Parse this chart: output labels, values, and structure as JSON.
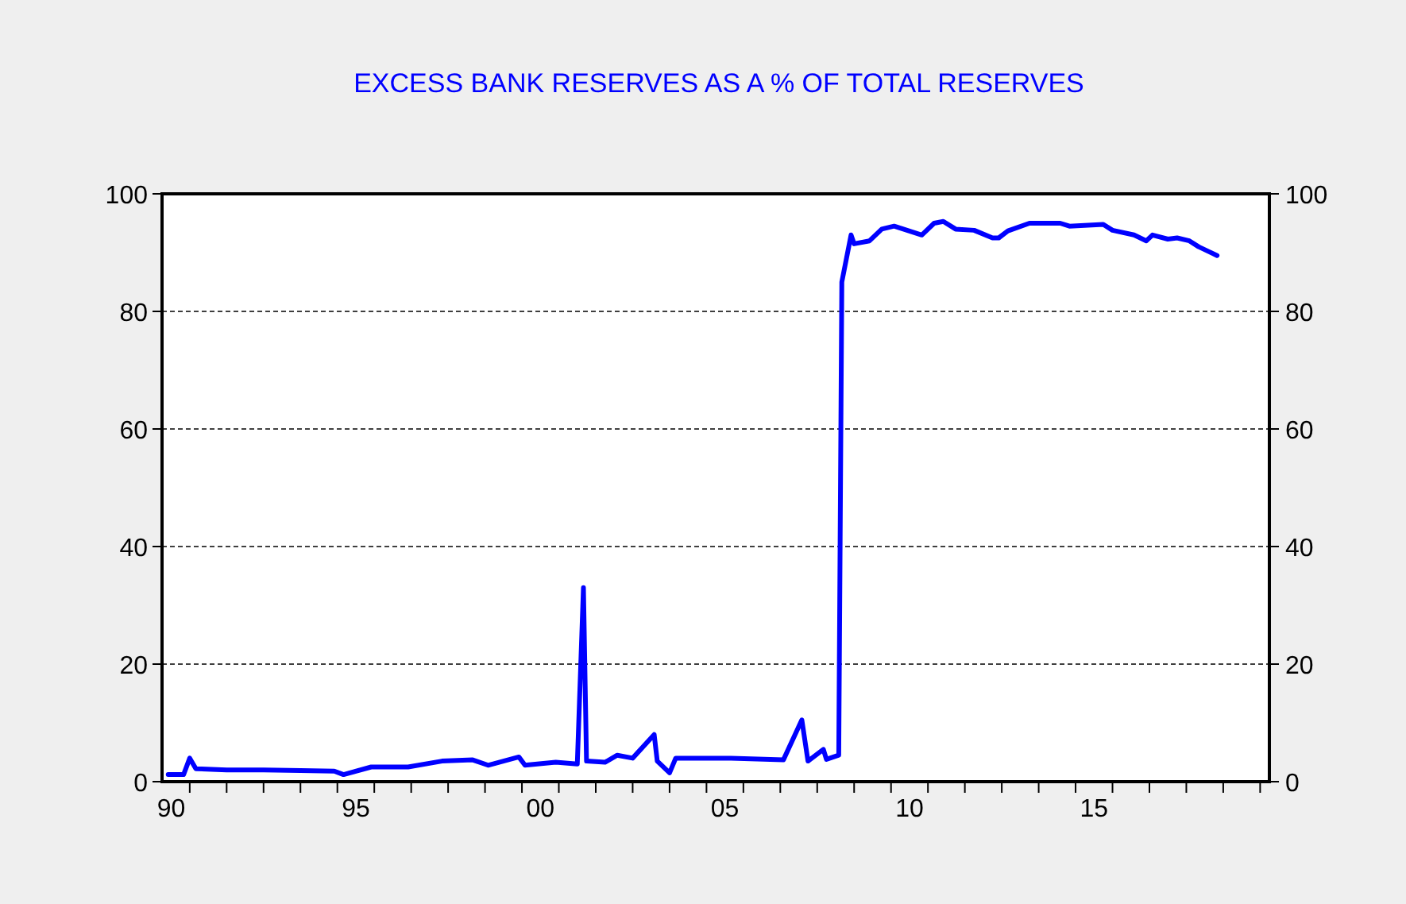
{
  "chart_data": {
    "type": "line",
    "title": "EXCESS BANK RESERVES AS A % OF TOTAL RESERVES",
    "xlim": [
      "1990-04",
      "2020-04"
    ],
    "xticks": [
      {
        "value": "1990-07",
        "label": "90"
      },
      {
        "value": "1995-07",
        "label": "95"
      },
      {
        "value": "2000-07",
        "label": "00"
      },
      {
        "value": "2005-07",
        "label": "05"
      },
      {
        "value": "2010-07",
        "label": "10"
      },
      {
        "value": "2015-07",
        "label": "15"
      },
      {
        "value": "1991-01",
        "label": null
      },
      {
        "value": "1992-01",
        "label": null
      },
      {
        "value": "1993-01",
        "label": null
      },
      {
        "value": "1994-01",
        "label": null
      },
      {
        "value": "1995-01",
        "label": null
      },
      {
        "value": "1996-01",
        "label": null
      },
      {
        "value": "1997-01",
        "label": null
      },
      {
        "value": "1998-01",
        "label": null
      },
      {
        "value": "1999-01",
        "label": null
      },
      {
        "value": "2000-01",
        "label": null
      },
      {
        "value": "2001-01",
        "label": null
      },
      {
        "value": "2002-01",
        "label": null
      },
      {
        "value": "2003-01",
        "label": null
      },
      {
        "value": "2004-01",
        "label": null
      },
      {
        "value": "2005-01",
        "label": null
      },
      {
        "value": "2006-01",
        "label": null
      },
      {
        "value": "2007-01",
        "label": null
      },
      {
        "value": "2008-01",
        "label": null
      },
      {
        "value": "2009-01",
        "label": null
      },
      {
        "value": "2010-01",
        "label": null
      },
      {
        "value": "2011-01",
        "label": null
      },
      {
        "value": "2012-01",
        "label": null
      },
      {
        "value": "2013-01",
        "label": null
      },
      {
        "value": "2014-01",
        "label": null
      },
      {
        "value": "2015-01",
        "label": null
      },
      {
        "value": "2016-01",
        "label": null
      },
      {
        "value": "2017-01",
        "label": null
      },
      {
        "value": "2018-01",
        "label": null
      },
      {
        "value": "2019-01",
        "label": null
      },
      {
        "value": "2020-01",
        "label": null
      }
    ],
    "ylim": [
      0,
      100
    ],
    "yticks": [
      0,
      20,
      40,
      60,
      80,
      100
    ],
    "y2lim": [
      0,
      100
    ],
    "y2ticks": [
      0,
      20,
      40,
      60,
      80,
      100
    ],
    "grid": "y",
    "line_style": "solid",
    "marker": "none",
    "series": [
      {
        "color": "#0000ff",
        "x": [
          "1990-06",
          "1990-11",
          "1991-01",
          "1991-03",
          "1992-01",
          "1993-01",
          "1994-01",
          "1994-12",
          "1995-03",
          "1995-12",
          "1996-12",
          "1997-11",
          "1998-09",
          "1999-02",
          "1999-12",
          "2000-02",
          "2000-12",
          "2001-07",
          "2001-09",
          "2001-10",
          "2002-04",
          "2002-08",
          "2003-01",
          "2003-08",
          "2003-09",
          "2004-01",
          "2004-03",
          "2005-09",
          "2007-02",
          "2007-08",
          "2007-10",
          "2008-03",
          "2008-04",
          "2008-08",
          "2008-09",
          "2008-12",
          "2009-01",
          "2009-06",
          "2009-10",
          "2010-02",
          "2010-11",
          "2011-03",
          "2011-06",
          "2011-10",
          "2012-04",
          "2012-10",
          "2012-12",
          "2013-03",
          "2013-10",
          "2014-08",
          "2014-11",
          "2015-10",
          "2016-01",
          "2016-08",
          "2016-12",
          "2017-02",
          "2017-07",
          "2017-10",
          "2018-02",
          "2018-05",
          "2018-11"
        ],
        "values": [
          1.2,
          1.2,
          4,
          2.2,
          2,
          2,
          1.9,
          1.8,
          1.2,
          2.5,
          2.5,
          3.5,
          3.7,
          2.8,
          4.2,
          2.8,
          3.3,
          3,
          33,
          3.5,
          3.3,
          4.5,
          4,
          8,
          3.5,
          1.5,
          4,
          4,
          3.7,
          10.5,
          3.5,
          5.5,
          3.8,
          4.5,
          85,
          93,
          91.5,
          92,
          94,
          94.5,
          93,
          95,
          95.3,
          94,
          93.8,
          92.5,
          92.5,
          93.7,
          95,
          95,
          94.5,
          94.8,
          93.8,
          93,
          92,
          93,
          92.3,
          92.5,
          92,
          91,
          89.5
        ]
      }
    ]
  }
}
